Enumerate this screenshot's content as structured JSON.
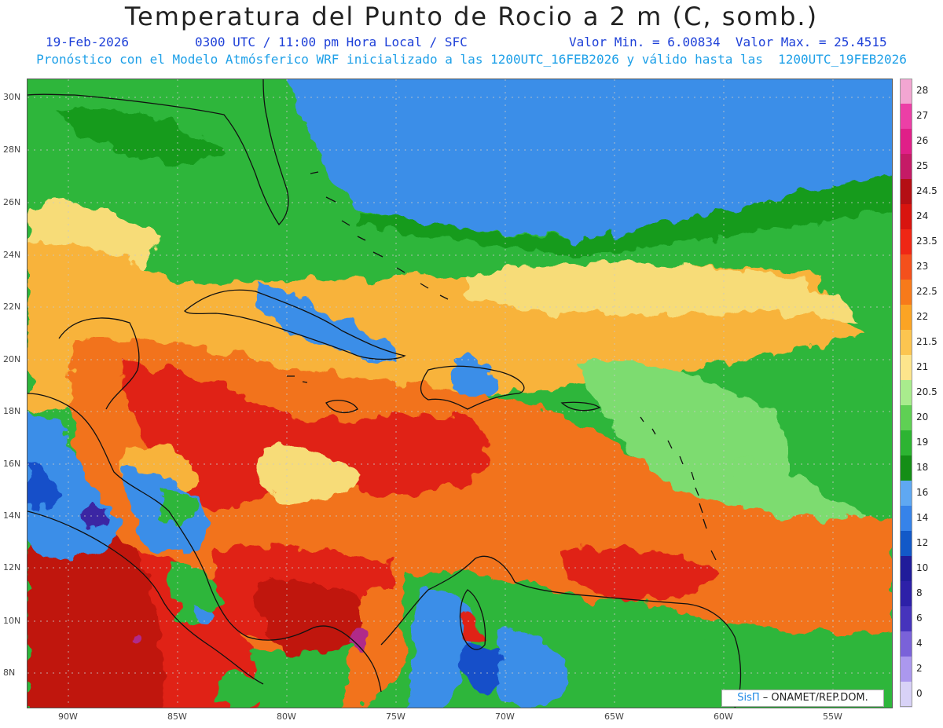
{
  "title": "Temperatura del Punto de Rocio a 2 m (C, somb.)",
  "subtitle": {
    "date": "19-Feb-2026",
    "time": "0300 UTC / 11:00 pm Hora Local / SFC",
    "minmax": "Valor Min. = 6.00834  Valor Max. = 25.4515",
    "model_run": "Pronóstico con el Modelo Atmósferico WRF inicializado a las 1200UTC_16FEB2026 y válido hasta las  1200UTC_19FEB2026"
  },
  "map": {
    "lat_ticks": [
      "30N",
      "28N",
      "26N",
      "24N",
      "22N",
      "20N",
      "18N",
      "16N",
      "14N",
      "12N",
      "10N",
      "8N"
    ],
    "lon_ticks": [
      "90W",
      "85W",
      "80W",
      "75W",
      "70W",
      "65W",
      "60W",
      "55W"
    ],
    "colors": {
      "ocean_cool": "#3b8ee8",
      "green_dark": "#149b1e",
      "green": "#2fb63b",
      "green_light": "#7ddc6f",
      "yellow": "#f7dc78",
      "orange_light": "#f8b33a",
      "orange": "#f2731c",
      "red": "#e02218",
      "red_dark": "#c01208",
      "blue_dark": "#1650c9",
      "purple": "#3b26a3",
      "magenta": "#b02a8a",
      "coastline": "#111111"
    }
  },
  "colorbar": {
    "levels": [
      "28",
      "27",
      "26",
      "25",
      "24.5",
      "24",
      "23.5",
      "23",
      "22.5",
      "22",
      "21.5",
      "21",
      "20.5",
      "20",
      "19",
      "18",
      "16",
      "14",
      "12",
      "10",
      "8",
      "6",
      "4",
      "2",
      "0"
    ],
    "colors": [
      "#f2a6d2",
      "#ec3fa6",
      "#e01f88",
      "#c51a66",
      "#b40f14",
      "#d8140f",
      "#ef2715",
      "#f4501c",
      "#f77a1a",
      "#fba424",
      "#fcc550",
      "#fde58c",
      "#a9ec8d",
      "#5fd054",
      "#2db432",
      "#148e16",
      "#5fa8f2",
      "#3683e9",
      "#1259c8",
      "#201c9a",
      "#2d20a8",
      "#4634bc",
      "#7a62d9",
      "#ab98ee",
      "#d8d2f7"
    ]
  },
  "credit": {
    "brand": "SisΠ",
    "text": "– ONAMET/REP.DOM."
  }
}
